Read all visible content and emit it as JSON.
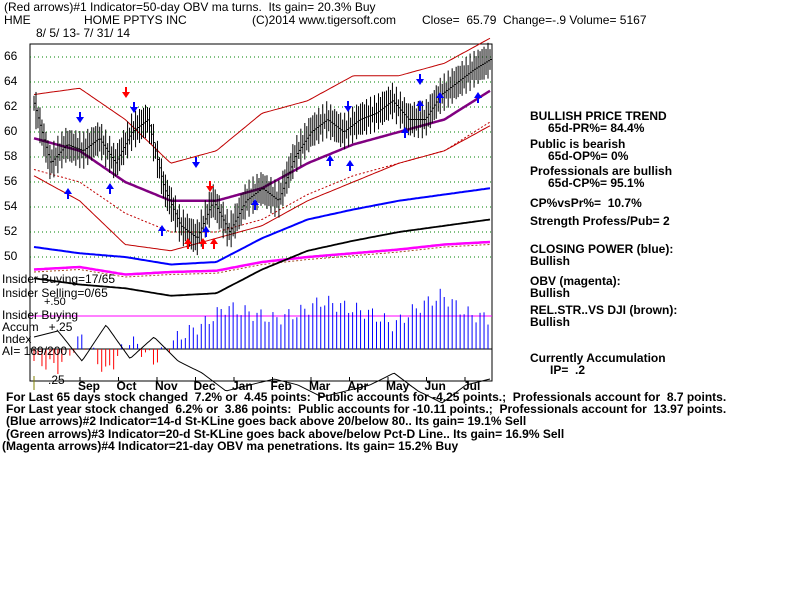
{
  "header": {
    "line1": "(Red arrows)#1 Indicator=50-day OBV ma turns.  Its gain= 20.3% Buy",
    "ticker": "HME",
    "company": "HOME PPTYS INC",
    "copyright": "(C)2014 www.tigersoft.com",
    "quote": "Close=  65.79  Change=-.9 Volume= 5167",
    "date_range": "8/ 5/ 13- 7/ 31/ 14"
  },
  "right_panel": {
    "trend_title": "BULLISH PRICE TREND",
    "pr": "65d-PR%= 84.4%",
    "public": "Public is bearish",
    "op": "65d-OP%= 0%",
    "professionals": "Professionals are bullish",
    "cp": "65d-CP%= 95.1%",
    "cpvspr": "CP%vsPr%=  10.7%",
    "strength": "Strength Profess/Pub= 2",
    "closing_power": "CLOSING POWER (blue):",
    "closing_power_val": "Bullish",
    "obv": "OBV (magenta):",
    "obv_val": "Bullish",
    "relstr": "REL.STR..VS DJI (brown):",
    "relstr_val": "Bullish",
    "accum": "Currently Accumulation",
    "ip": "IP=  .2"
  },
  "left_labels": {
    "insider_buying_top": "Insider Buying=17/65",
    "insider_selling": "Insider Selling=0/65",
    "insider_buying": "Insider Buying",
    "accum": "Accum   +.25",
    "index": "Index",
    "ai": "AI= 169/200",
    "minus25": "-.25",
    "plus50": "+.50"
  },
  "footer": [
    "For Last 65 days stock changed  7.2% or  4.45 points:  Public accounts for -4.25 points.;  Professionals account for  8.7 points.",
    "For Last year stock changed  6.2% or  3.86 points:  Public accounts for -10.11 points.;  Professionals account for  13.97 points.",
    "(Blue arrows)#2 Indicator=14-d St-KLine goes back above 20/below 80.. Its gain= 19.1% Sell",
    "(Green arrows)#3 Indicator=20-d St-KLine goes back above/below Pct-D Line.. Its gain= 16.9% Sell",
    "(Magenta arrows)#4 Indicator=21-day OBV ma penetrations. Its gain= 15.2% Buy"
  ],
  "colors": {
    "price": "#000000",
    "ma": "#800080",
    "band": "#c00000",
    "closing_power": "#0000ff",
    "obv": "#ff00ff",
    "relstr": "#a05020",
    "grid": "#008000",
    "accum_pos": "#0000ff",
    "accum_neg": "#ff0000",
    "arrow_red": "#ff0000",
    "arrow_blue": "#0000ff"
  },
  "chart_data": {
    "type": "line",
    "title": "HOME PPTYS INC",
    "x": [
      "Sep",
      "Oct",
      "Nov",
      "Dec",
      "Jan",
      "Feb",
      "Mar",
      "Apr",
      "May",
      "Jun",
      "Jul"
    ],
    "ylim": [
      49,
      67
    ],
    "yticks": [
      50,
      52,
      54,
      56,
      58,
      60,
      62,
      64,
      66
    ],
    "price_keypoints": [
      62.3,
      57.5,
      59.0,
      58.5,
      59.5,
      57.5,
      60.0,
      61.0,
      55.5,
      52.5,
      51.5,
      54.5,
      52.0,
      54.5,
      55.5,
      54.5,
      58.0,
      60.0,
      61.0,
      60.0,
      61.0,
      61.5,
      62.5,
      61.0,
      61.0,
      63.0,
      64.0,
      65.0,
      65.8
    ],
    "ma_keypoints": [
      59.5,
      58.5,
      56.0,
      54.5,
      54.5,
      55.5,
      57.5,
      59.0,
      60.0,
      61.0,
      63.3
    ],
    "band_upper_keypoints": [
      63.0,
      63.5,
      61.0,
      57.5,
      58.5,
      61.5,
      62.5,
      64.5,
      64.5,
      65.5,
      67.5
    ],
    "band_lower_keypoints": [
      56.5,
      54.5,
      51.0,
      50.5,
      51.5,
      52.5,
      54.5,
      56.0,
      57.5,
      58.5,
      60.5
    ],
    "closing_power_keypoints": [
      50.8,
      50.3,
      50.0,
      49.4,
      49.6,
      51.5,
      53.0,
      53.8,
      54.5,
      55.0,
      55.5
    ],
    "obv_keypoints": [
      49.0,
      49.2,
      48.6,
      48.8,
      48.9,
      49.6,
      50.0,
      50.3,
      50.6,
      51.0,
      51.2
    ],
    "accum_range": [
      -0.25,
      0.5
    ],
    "accum_keypoints": [
      -0.1,
      -0.15,
      0.1,
      -0.2,
      0.08,
      -0.1,
      0.1,
      0.2,
      0.35,
      0.3,
      0.25,
      0.3,
      0.4,
      0.35,
      0.3,
      0.2,
      0.35,
      0.45,
      0.3,
      0.25
    ]
  }
}
